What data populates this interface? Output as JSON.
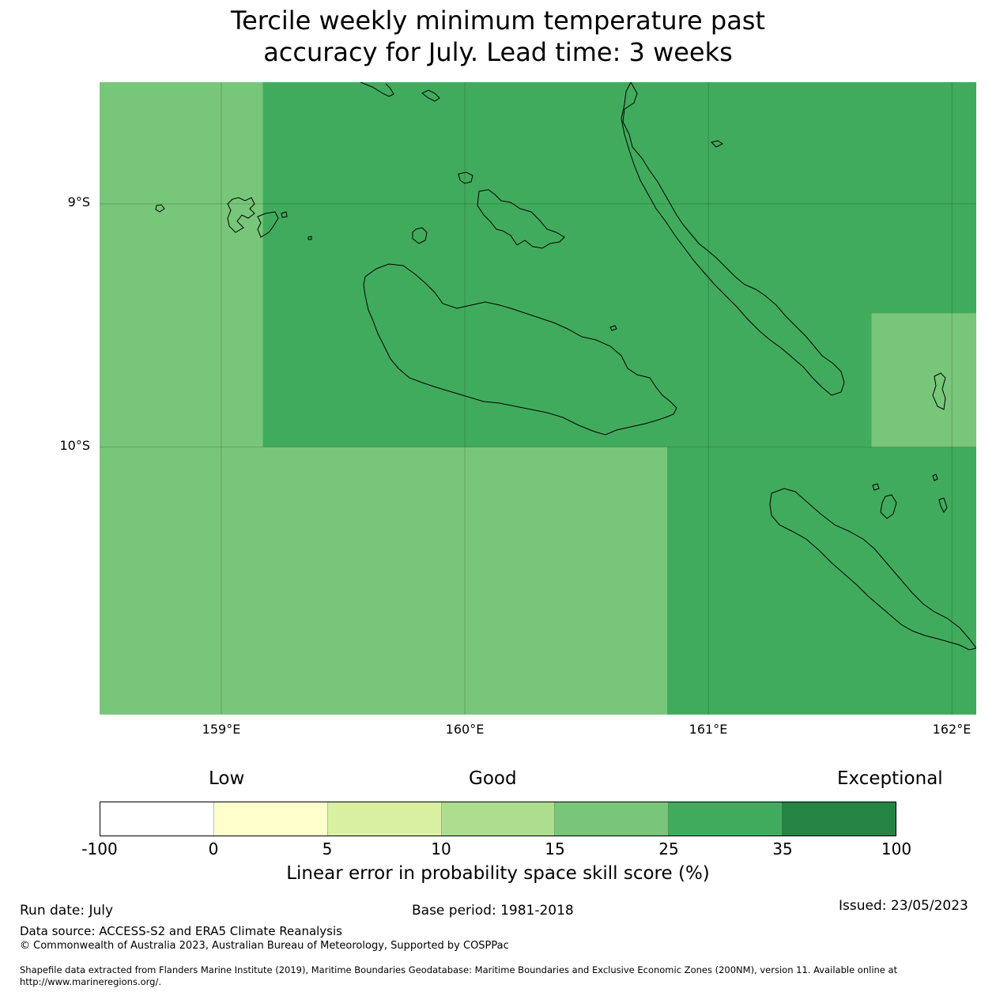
{
  "title_line1": "Tercile weekly minimum temperature past",
  "title_line2": "accuracy for July. Lead time: 3 weeks",
  "map": {
    "lon_range": [
      158.5,
      162.1
    ],
    "lat_range": [
      -11.1,
      -8.5
    ],
    "lat_ticks": [
      {
        "value": -9,
        "label": "9°S"
      },
      {
        "value": -10,
        "label": "10°S"
      }
    ],
    "lon_ticks": [
      {
        "value": 159,
        "label": "159°E"
      },
      {
        "value": 160,
        "label": "160°E"
      },
      {
        "value": 161,
        "label": "161°E"
      },
      {
        "value": 162,
        "label": "162°E"
      }
    ],
    "category_colors": {
      "15-25": "#78c679",
      "25-35": "#41ab5d"
    },
    "regions": [
      {
        "category": "15-25",
        "lon": [
          158.5,
          159.17
        ],
        "lat": [
          -10.0,
          -8.5
        ]
      },
      {
        "category": "25-35",
        "lon": [
          159.17,
          162.1
        ],
        "lat": [
          -10.0,
          -8.5
        ]
      },
      {
        "category": "15-25",
        "lon": [
          161.67,
          162.1
        ],
        "lat": [
          -10.0,
          -9.45
        ]
      },
      {
        "category": "15-25",
        "lon": [
          158.5,
          160.83
        ],
        "lat": [
          -11.1,
          -10.0
        ]
      },
      {
        "category": "25-35",
        "lon": [
          160.83,
          162.1
        ],
        "lat": [
          -11.1,
          -10.0
        ]
      }
    ]
  },
  "colorbar": {
    "header_low": "Low",
    "header_good": "Good",
    "header_exceptional": "Exceptional",
    "segments": [
      {
        "from": -100,
        "to": 0,
        "color": "#ffffff"
      },
      {
        "from": 0,
        "to": 5,
        "color": "#ffffcc"
      },
      {
        "from": 5,
        "to": 10,
        "color": "#d9f0a3"
      },
      {
        "from": 10,
        "to": 15,
        "color": "#addd8e"
      },
      {
        "from": 15,
        "to": 25,
        "color": "#78c679"
      },
      {
        "from": 25,
        "to": 35,
        "color": "#41ab5d"
      },
      {
        "from": 35,
        "to": 100,
        "color": "#238443"
      }
    ],
    "ticks": [
      "-100",
      "0",
      "5",
      "10",
      "15",
      "25",
      "35",
      "100"
    ],
    "label": "Linear error in probability space skill score (%)"
  },
  "footer": {
    "run_date": "Run date: July",
    "base_period": "Base period: 1981-2018",
    "issued": "Issued: 23/05/2023",
    "data_source": "Data source: ACCESS-S2 and ERA5 Climate Reanalysis",
    "copyright": "© Commonwealth of Australia 2023, Australian Bureau of Meteorology, Supported by COSPPac",
    "shapefile_line1": "Shapefile data extracted from Flanders Marine Institute (2019), Maritime Boundaries Geodatabase: Maritime Boundaries and Exclusive Economic Zones (200NM), version 11. Available online at",
    "shapefile_line2": "http://www.marineregions.org/."
  }
}
